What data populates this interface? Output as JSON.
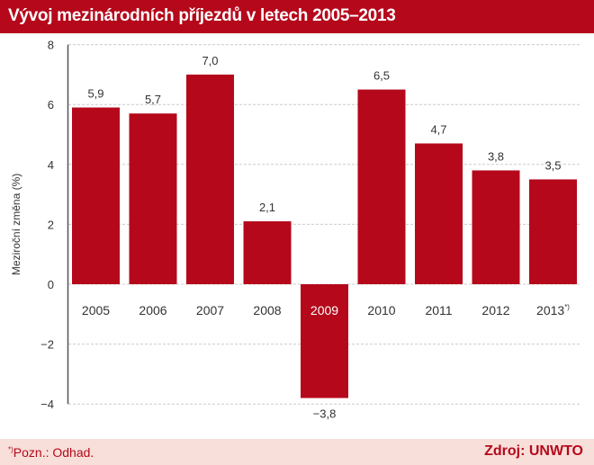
{
  "header": {
    "title": "Vývoj mezinárodních příjezdů v letech 2005–2013"
  },
  "footer": {
    "note_mark": "*)",
    "note": "Pozn.: Odhad.",
    "source": "Zdroj: UNWTO"
  },
  "colors": {
    "bar": "#b5081b",
    "header": "#b5081b",
    "footer_bg": "#f8dfd9"
  },
  "chart_data": {
    "type": "bar",
    "title": "Vývoj mezinárodních příjezdů v letech 2005–2013",
    "ylabel": "Meziroční změna (%)",
    "xlabel": "",
    "categories": [
      "2005",
      "2006",
      "2007",
      "2008",
      "2009",
      "2010",
      "2011",
      "2012",
      "2013*)"
    ],
    "values": [
      5.9,
      5.7,
      7.0,
      2.1,
      -3.8,
      6.5,
      4.7,
      3.8,
      3.5
    ],
    "value_labels": [
      "5,9",
      "5,7",
      "7,0",
      "2,1",
      "−3,8",
      "6,5",
      "4,7",
      "3,8",
      "3,5"
    ],
    "yticks": [
      "8",
      "6",
      "4",
      "2",
      "0",
      "−2",
      "−4"
    ],
    "ylim": [
      -4,
      8
    ],
    "grid": true
  }
}
